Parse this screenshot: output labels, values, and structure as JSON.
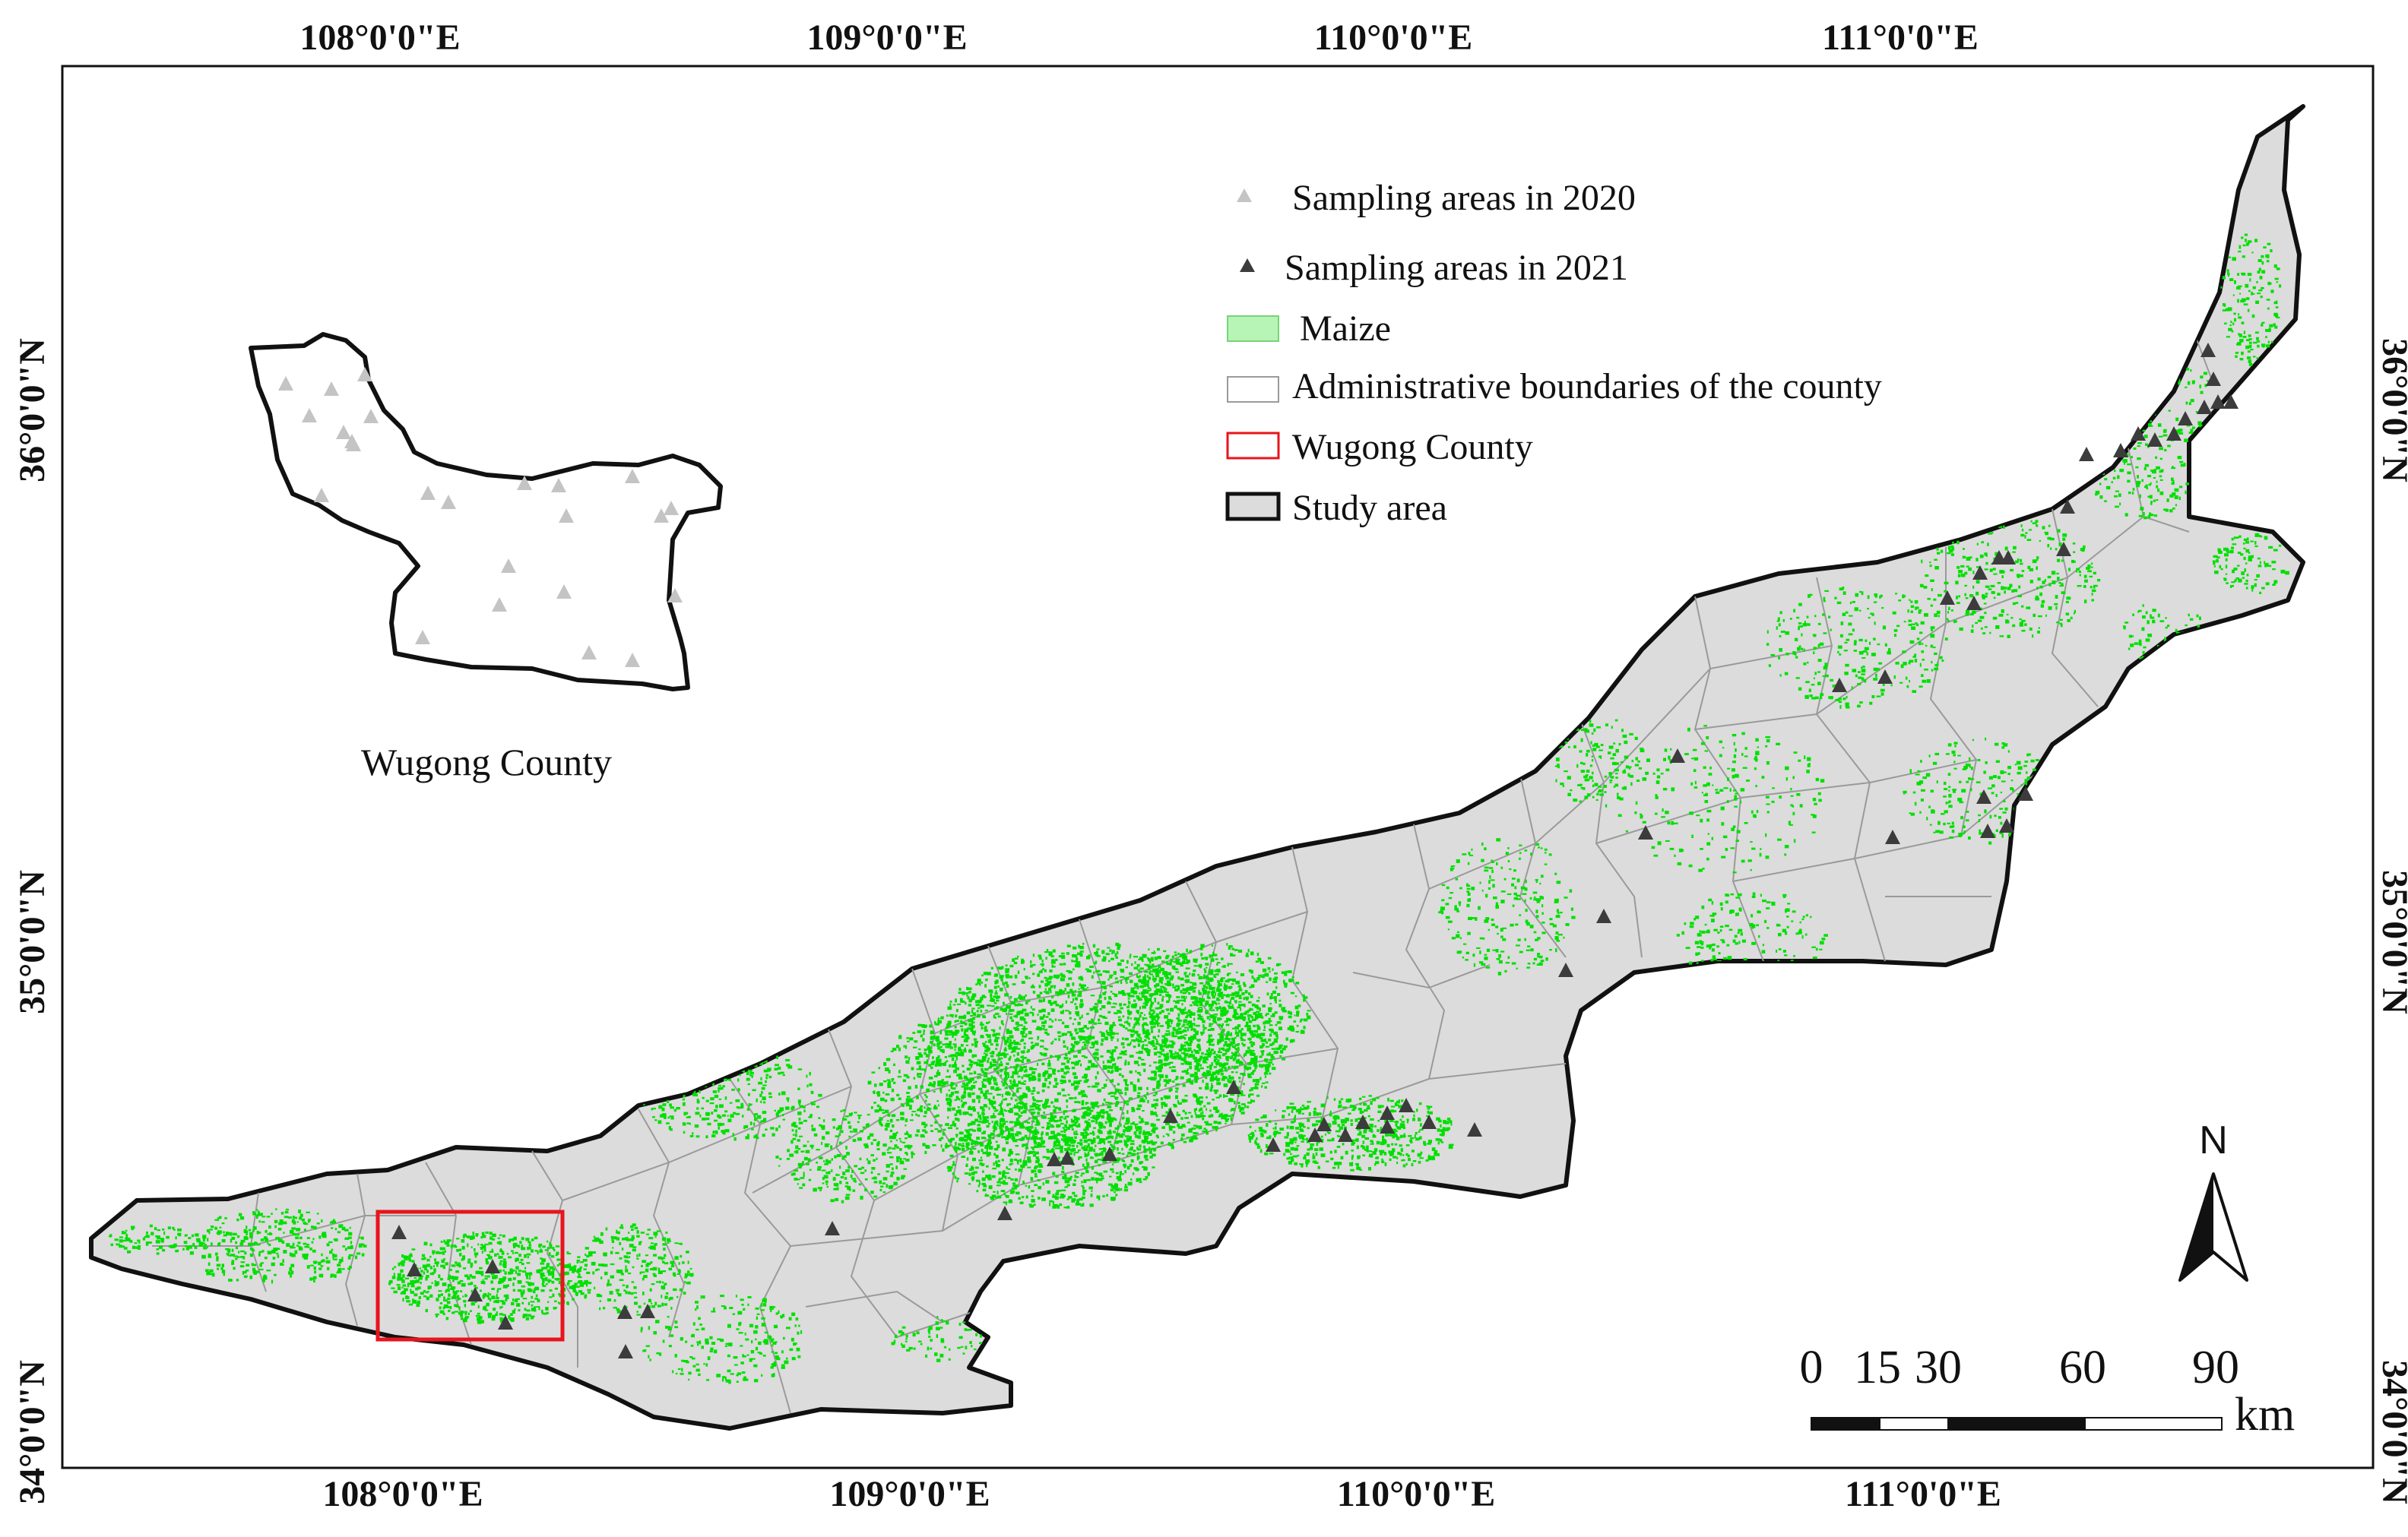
{
  "map": {
    "top_ticks": [
      "108°0'0\"E",
      "109°0'0\"E",
      "110°0'0\"E",
      "111°0'0\"E"
    ],
    "bottom_ticks": [
      "108°0'0\"E",
      "109°0'0\"E",
      "110°0'0\"E",
      "111°0'0\"E"
    ],
    "left_ticks": [
      "36°0'0\"N",
      "35°0'0\"N",
      "34°0'0\"N"
    ],
    "right_ticks": [
      "36°0'0\"N",
      "35°0'0\"N",
      "34°0'0\"N"
    ]
  },
  "legend": {
    "sampling_2020": "Sampling areas in 2020",
    "sampling_2021": "Sampling areas in 2021",
    "maize": "Maize",
    "admin_boundaries": "Administrative boundaries of the county",
    "wugong": "Wugong County",
    "study_area": "Study area"
  },
  "inset": {
    "title": "Wugong County"
  },
  "scale_bar": {
    "labels": [
      "0",
      "15",
      "30",
      "60",
      "90"
    ],
    "unit": "km"
  },
  "north_arrow": {
    "label": "N"
  },
  "colors": {
    "study_area_fill": "#dcdcdc",
    "maize": "#00e000",
    "maize_legend": "#b6f5b6",
    "sample_2020": "#c4c4c4",
    "sample_2021": "#3c3c3c",
    "wugong_box": "#e8141c",
    "admin_line": "#9a9a9a",
    "outline": "#111111"
  }
}
